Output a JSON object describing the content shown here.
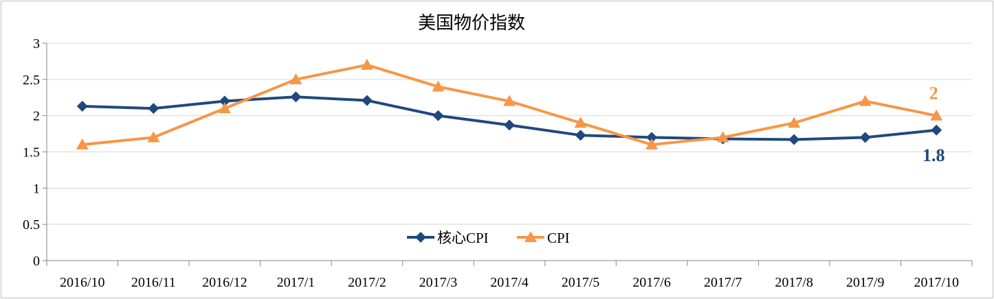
{
  "chart_data": {
    "type": "line",
    "title": "美国物价指数",
    "categories": [
      "2016/10",
      "2016/11",
      "2016/12",
      "2017/1",
      "2017/2",
      "2017/3",
      "2017/4",
      "2017/5",
      "2017/6",
      "2017/7",
      "2017/8",
      "2017/9",
      "2017/10"
    ],
    "ylim": [
      0,
      3
    ],
    "yticks": [
      "0",
      "0.5",
      "1",
      "1.5",
      "2",
      "2.5",
      "3"
    ],
    "grid": true,
    "legend_position": "bottom-center",
    "series": [
      {
        "name": "核心CPI",
        "color": "#1F497D",
        "marker": "diamond",
        "values": [
          2.13,
          2.1,
          2.2,
          2.26,
          2.21,
          2.0,
          1.87,
          1.73,
          1.7,
          1.68,
          1.67,
          1.7,
          1.8
        ],
        "end_label": "1.8"
      },
      {
        "name": "CPI",
        "color": "#F79646",
        "marker": "triangle",
        "values": [
          1.6,
          1.7,
          2.1,
          2.5,
          2.7,
          2.4,
          2.2,
          1.9,
          1.6,
          1.7,
          1.9,
          2.2,
          2.0
        ],
        "end_label": "2"
      }
    ]
  }
}
